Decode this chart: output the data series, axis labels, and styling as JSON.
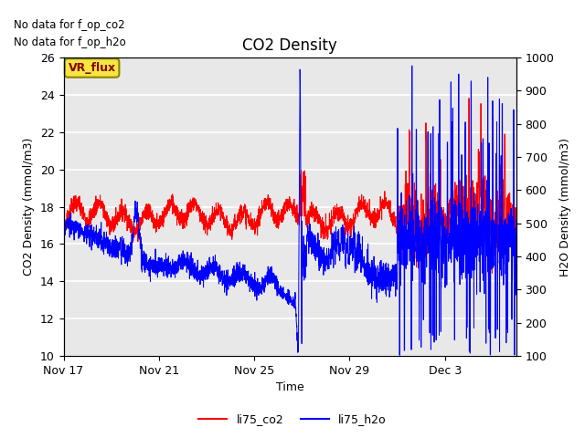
{
  "title": "CO2 Density",
  "xlabel": "Time",
  "ylabel_left": "CO2 Density (mmol/m3)",
  "ylabel_right": "H2O Density (mmol/m3)",
  "ylim_left": [
    10,
    26
  ],
  "ylim_right": [
    100,
    1000
  ],
  "legend_entries": [
    "li75_co2",
    "li75_h2o"
  ],
  "legend_colors": [
    "red",
    "blue"
  ],
  "no_data_text": [
    "No data for f_op_co2",
    "No data for f_op_h2o"
  ],
  "vr_flux_label": "VR_flux",
  "background_color": "#e8e8e8",
  "xtick_labels": [
    "Nov 17",
    "Nov 21",
    "Nov 25",
    "Nov 29",
    "Dec 3"
  ],
  "xtick_positions": [
    0,
    4,
    8,
    12,
    16
  ],
  "total_days": 19,
  "title_fontsize": 12,
  "axis_label_fontsize": 9,
  "tick_fontsize": 9,
  "right_yticks": [
    100,
    200,
    300,
    400,
    500,
    600,
    700,
    800,
    900,
    1000
  ],
  "left_yticks": [
    10,
    12,
    14,
    16,
    18,
    20,
    22,
    24,
    26
  ]
}
